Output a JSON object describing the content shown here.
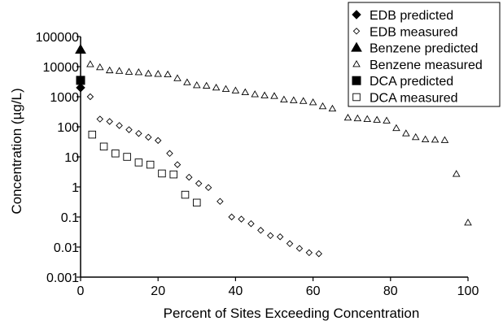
{
  "chart_data": {
    "type": "scatter",
    "title": "",
    "xlabel": "Percent of Sites Exceeding Concentration",
    "ylabel": "Concentration (µg/L)",
    "x_range": [
      0,
      100
    ],
    "y_range": [
      0.001,
      100000
    ],
    "y_scale": "log",
    "grid": false,
    "legend_position": "top-right",
    "x_ticks": [
      {
        "value": 0,
        "label": "0"
      },
      {
        "value": 20,
        "label": "20"
      },
      {
        "value": 40,
        "label": "40"
      },
      {
        "value": 60,
        "label": "60"
      },
      {
        "value": 80,
        "label": "80"
      },
      {
        "value": 100,
        "label": "100"
      }
    ],
    "y_ticks": [
      {
        "value": 0.001,
        "label": "0.001"
      },
      {
        "value": 0.01,
        "label": "0.01"
      },
      {
        "value": 0.1,
        "label": "0.1"
      },
      {
        "value": 1,
        "label": "1"
      },
      {
        "value": 10,
        "label": "10"
      },
      {
        "value": 100,
        "label": "100"
      },
      {
        "value": 1000,
        "label": "1000"
      },
      {
        "value": 10000,
        "label": "10000"
      },
      {
        "value": 100000,
        "label": "100000"
      }
    ],
    "series": [
      {
        "name": "EDB predicted",
        "marker": "diamond-filled",
        "points": [
          [
            0,
            2000
          ]
        ]
      },
      {
        "name": "EDB measured",
        "marker": "diamond-open",
        "points": [
          [
            2.5,
            1000
          ],
          [
            5,
            180
          ],
          [
            7.5,
            150
          ],
          [
            10,
            110
          ],
          [
            12.5,
            80
          ],
          [
            15,
            60
          ],
          [
            17.5,
            45
          ],
          [
            20,
            35
          ],
          [
            23,
            13
          ],
          [
            25,
            5.5
          ],
          [
            28,
            2.1
          ],
          [
            30.5,
            1.3
          ],
          [
            33,
            0.95
          ],
          [
            36,
            0.33
          ],
          [
            39,
            0.1
          ],
          [
            41.5,
            0.085
          ],
          [
            44,
            0.06
          ],
          [
            46.5,
            0.036
          ],
          [
            49,
            0.024
          ],
          [
            51.5,
            0.022
          ],
          [
            54,
            0.013
          ],
          [
            56.5,
            0.009
          ],
          [
            59,
            0.0065
          ],
          [
            61.5,
            0.006
          ]
        ]
      },
      {
        "name": "Benzene predicted",
        "marker": "triangle-filled",
        "points": [
          [
            0,
            37000
          ]
        ]
      },
      {
        "name": "Benzene measured",
        "marker": "triangle-open",
        "points": [
          [
            2.5,
            12000
          ],
          [
            5,
            9500
          ],
          [
            7.5,
            7500
          ],
          [
            10,
            7200
          ],
          [
            12.5,
            6700
          ],
          [
            15,
            6500
          ],
          [
            17.5,
            5900
          ],
          [
            20,
            5700
          ],
          [
            22.5,
            5500
          ],
          [
            25,
            4100
          ],
          [
            27.5,
            3000
          ],
          [
            30,
            2400
          ],
          [
            32.5,
            2300
          ],
          [
            35,
            2000
          ],
          [
            37.5,
            1800
          ],
          [
            40,
            1600
          ],
          [
            42.5,
            1400
          ],
          [
            45,
            1200
          ],
          [
            47.5,
            1100
          ],
          [
            50,
            1050
          ],
          [
            52.5,
            800
          ],
          [
            55,
            760
          ],
          [
            57.5,
            720
          ],
          [
            60,
            650
          ],
          [
            62.5,
            480
          ],
          [
            65,
            400
          ],
          [
            69,
            200
          ],
          [
            71.5,
            190
          ],
          [
            74,
            180
          ],
          [
            76.5,
            170
          ],
          [
            79,
            160
          ],
          [
            81.5,
            90
          ],
          [
            84,
            60
          ],
          [
            86.5,
            45
          ],
          [
            89,
            38
          ],
          [
            91.5,
            37
          ],
          [
            94,
            36
          ],
          [
            97,
            2.7
          ],
          [
            100,
            0.065
          ]
        ]
      },
      {
        "name": "DCA predicted",
        "marker": "square-filled",
        "points": [
          [
            0,
            3500
          ]
        ]
      },
      {
        "name": "DCA measured",
        "marker": "square-open",
        "points": [
          [
            3,
            55
          ],
          [
            6,
            22
          ],
          [
            9,
            13
          ],
          [
            12,
            10
          ],
          [
            15,
            6.5
          ],
          [
            18,
            5.5
          ],
          [
            21,
            2.8
          ],
          [
            24,
            2.6
          ],
          [
            27,
            0.55
          ],
          [
            30,
            0.3
          ]
        ]
      }
    ]
  }
}
